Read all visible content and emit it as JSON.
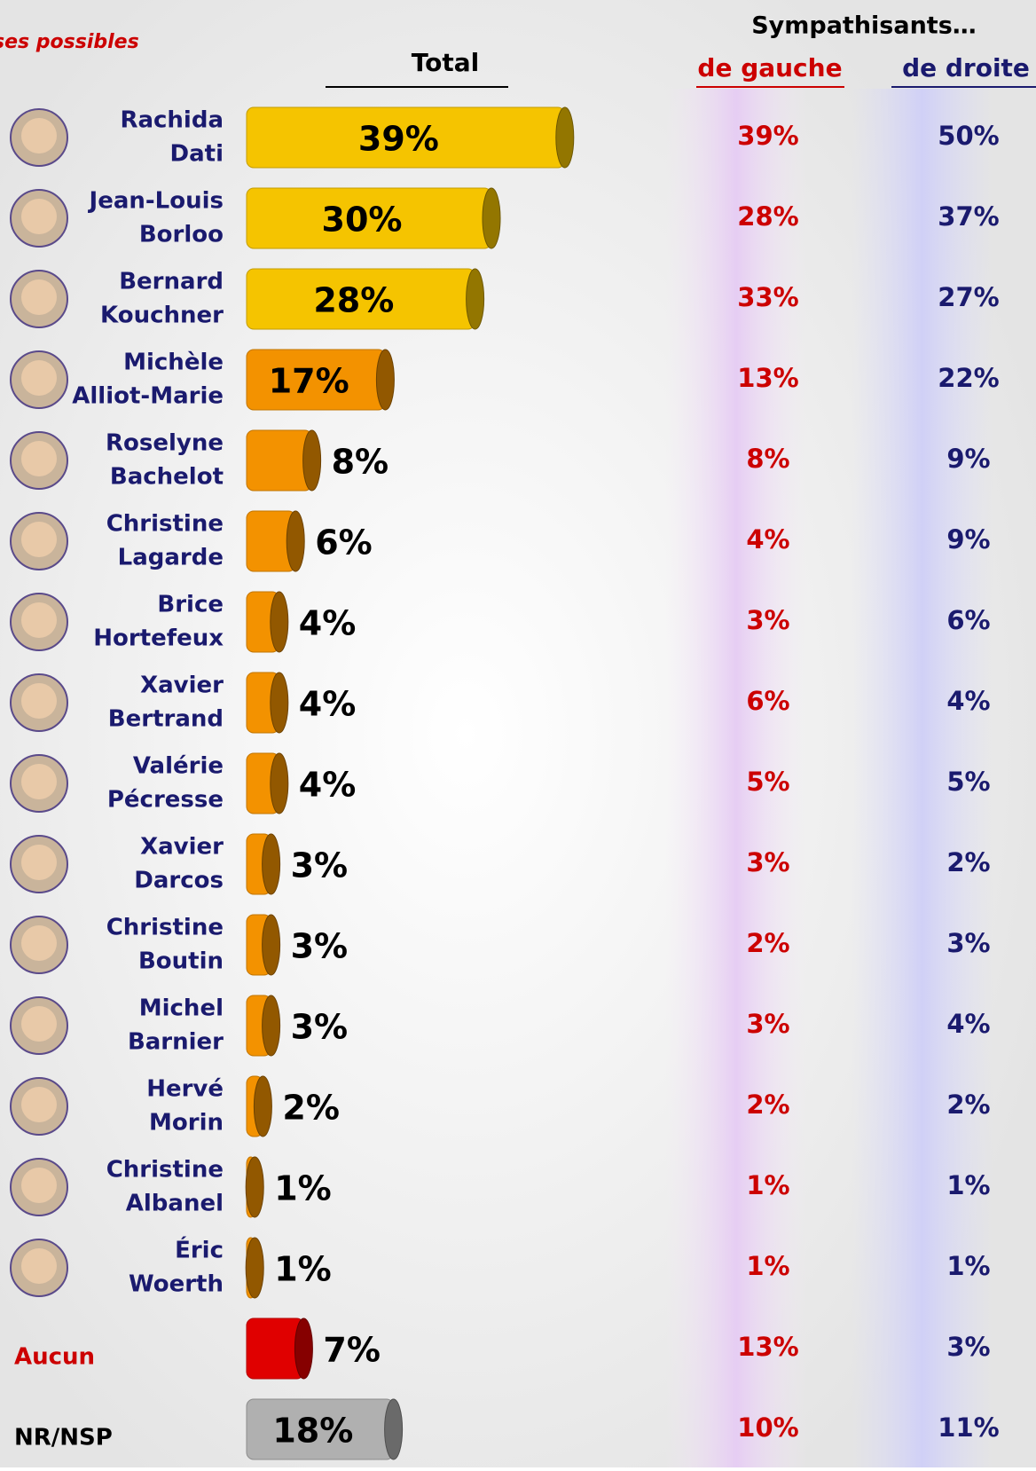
{
  "chart_data": {
    "type": "bar",
    "subtitle": "ses possibles",
    "group_title": "Sympathisants…",
    "categories": [
      [
        "Rachida",
        "Dati"
      ],
      [
        "Jean-Louis",
        "Borloo"
      ],
      [
        "Bernard",
        "Kouchner"
      ],
      [
        "Michèle",
        "Alliot-Marie"
      ],
      [
        "Roselyne",
        "Bachelot"
      ],
      [
        "Christine",
        "Lagarde"
      ],
      [
        "Brice",
        "Hortefeux"
      ],
      [
        "Xavier",
        "Bertrand"
      ],
      [
        "Valérie",
        "Pécresse"
      ],
      [
        "Xavier",
        "Darcos"
      ],
      [
        "Christine",
        "Boutin"
      ],
      [
        "Michel",
        "Barnier"
      ],
      [
        "Hervé",
        "Morin"
      ],
      [
        "Christine",
        "Albanel"
      ],
      [
        "Éric",
        "Woerth"
      ],
      [
        "Aucun"
      ],
      [
        "NR/NSP"
      ]
    ],
    "category_colors": [
      "#1a1a6e",
      "#1a1a6e",
      "#1a1a6e",
      "#1a1a6e",
      "#1a1a6e",
      "#1a1a6e",
      "#1a1a6e",
      "#1a1a6e",
      "#1a1a6e",
      "#1a1a6e",
      "#1a1a6e",
      "#1a1a6e",
      "#1a1a6e",
      "#1a1a6e",
      "#1a1a6e",
      "#cc0000",
      "#000000"
    ],
    "series": [
      {
        "name": "Total",
        "color": "#000000",
        "bar_colors": [
          "#f5c400",
          "#f5c400",
          "#f5c400",
          "#f39200",
          "#f39200",
          "#f39200",
          "#f39200",
          "#f39200",
          "#f39200",
          "#f39200",
          "#f39200",
          "#f39200",
          "#f39200",
          "#f39200",
          "#f39200",
          "#e00000",
          "#b0b0b0"
        ],
        "values": [
          39,
          30,
          28,
          17,
          8,
          6,
          4,
          4,
          4,
          3,
          3,
          3,
          2,
          1,
          1,
          7,
          18
        ],
        "value_labels": [
          "39%",
          "30%",
          "28%",
          "17%",
          "8%",
          "6%",
          "4%",
          "4%",
          "4%",
          "3%",
          "3%",
          "3%",
          "2%",
          "1%",
          "1%",
          "7%",
          "18%"
        ]
      },
      {
        "name": "de gauche",
        "color": "#cc0000",
        "values": [
          39,
          28,
          33,
          13,
          8,
          4,
          3,
          6,
          5,
          3,
          2,
          3,
          2,
          1,
          1,
          13,
          10
        ],
        "value_labels": [
          "39%",
          "28%",
          "33%",
          "13%",
          "8%",
          "4%",
          "3%",
          "6%",
          "5%",
          "3%",
          "2%",
          "3%",
          "2%",
          "1%",
          "1%",
          "13%",
          "10%"
        ]
      },
      {
        "name": "de droite",
        "color": "#1a1a6e",
        "values": [
          50,
          37,
          27,
          22,
          9,
          9,
          6,
          4,
          5,
          2,
          3,
          4,
          2,
          1,
          1,
          3,
          11
        ],
        "value_labels": [
          "50%",
          "37%",
          "27%",
          "22%",
          "9%",
          "9%",
          "6%",
          "4%",
          "5%",
          "2%",
          "3%",
          "4%",
          "2%",
          "1%",
          "1%",
          "3%",
          "11%"
        ]
      }
    ]
  }
}
